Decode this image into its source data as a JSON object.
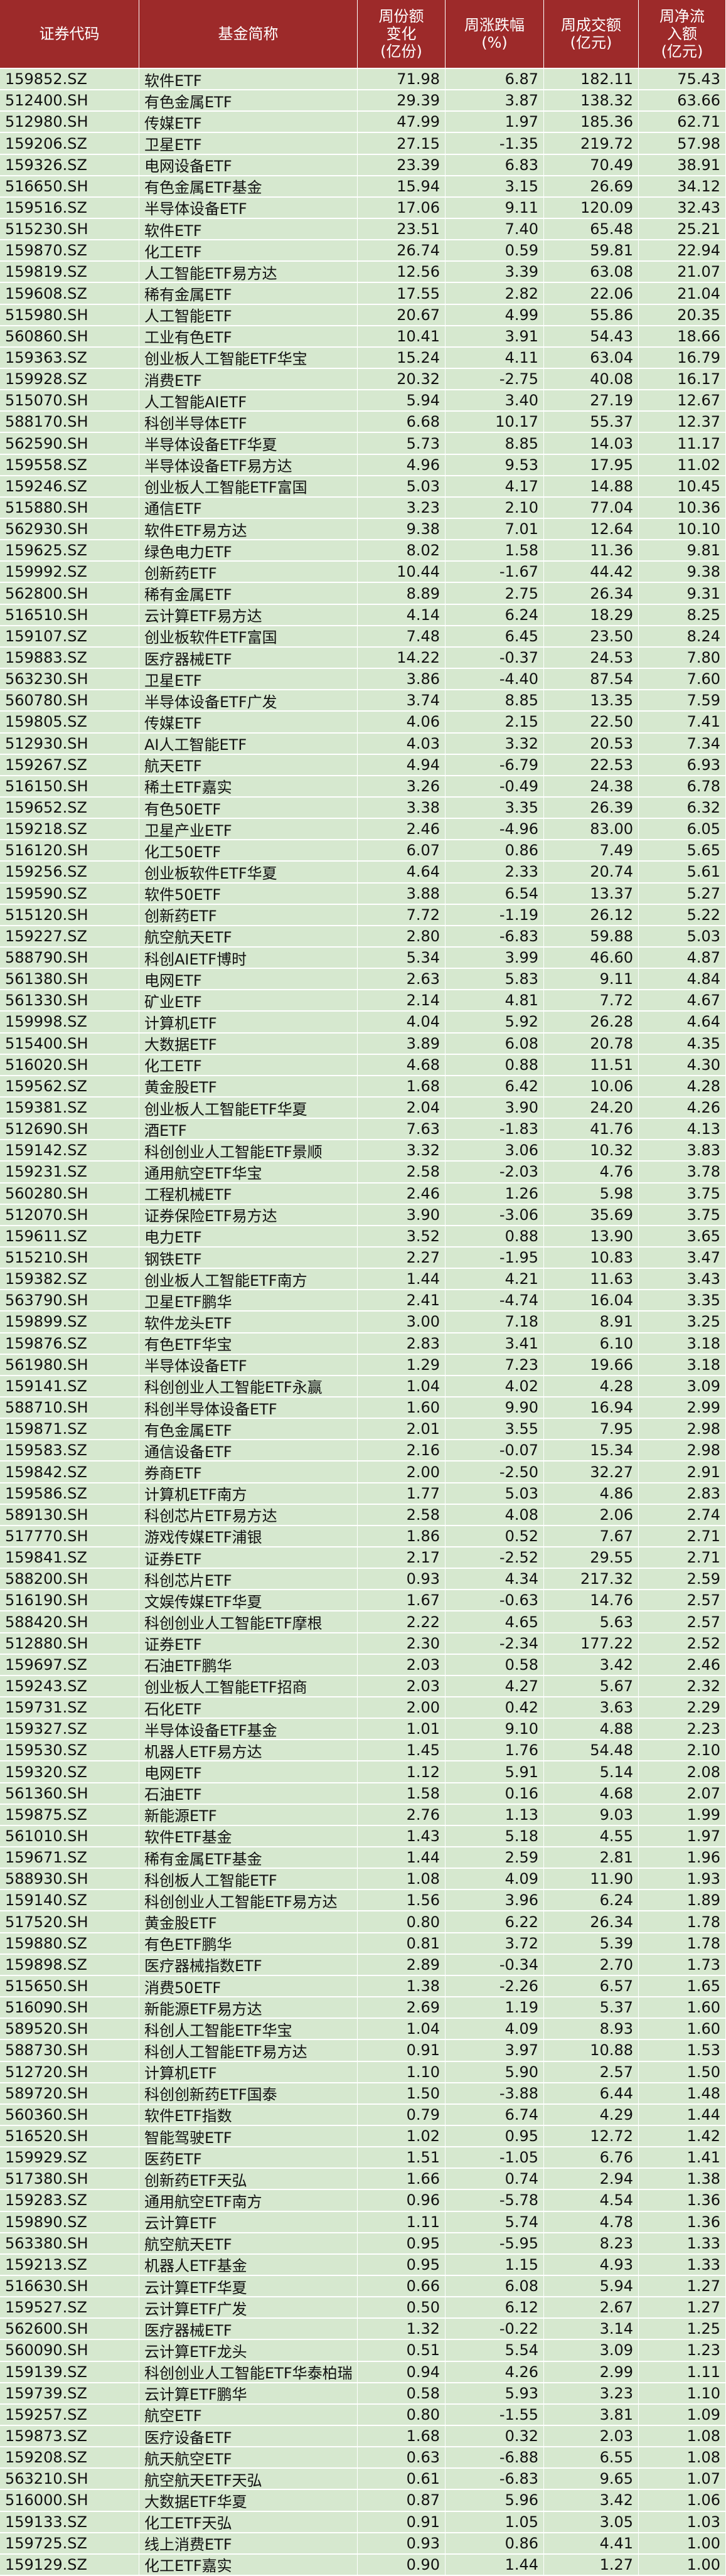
{
  "table": {
    "header": [
      "证券代码",
      "基金简称",
      "周份额\n变化\n(亿份)",
      "周涨跌幅\n(%)",
      "周成交额\n(亿元)",
      "周净流\n入额\n(亿元)"
    ],
    "rows": [
      [
        "159852.SZ",
        "软件ETF",
        "71.98",
        "6.87",
        "182.11",
        "75.43"
      ],
      [
        "512400.SH",
        "有色金属ETF",
        "29.39",
        "3.87",
        "138.32",
        "63.66"
      ],
      [
        "512980.SH",
        "传媒ETF",
        "47.99",
        "1.97",
        "185.36",
        "62.71"
      ],
      [
        "159206.SZ",
        "卫星ETF",
        "27.15",
        "-1.35",
        "219.72",
        "57.98"
      ],
      [
        "159326.SZ",
        "电网设备ETF",
        "23.39",
        "6.83",
        "70.49",
        "38.91"
      ],
      [
        "516650.SH",
        "有色金属ETF基金",
        "15.94",
        "3.15",
        "26.69",
        "34.12"
      ],
      [
        "159516.SZ",
        "半导体设备ETF",
        "17.06",
        "9.11",
        "120.09",
        "32.43"
      ],
      [
        "515230.SH",
        "软件ETF",
        "23.51",
        "7.40",
        "65.48",
        "25.21"
      ],
      [
        "159870.SZ",
        "化工ETF",
        "26.74",
        "0.59",
        "59.81",
        "22.94"
      ],
      [
        "159819.SZ",
        "人工智能ETF易方达",
        "12.56",
        "3.39",
        "63.08",
        "21.07"
      ],
      [
        "159608.SZ",
        "稀有金属ETF",
        "17.55",
        "2.82",
        "22.06",
        "21.04"
      ],
      [
        "515980.SH",
        "人工智能ETF",
        "20.67",
        "4.99",
        "55.86",
        "20.35"
      ],
      [
        "560860.SH",
        "工业有色ETF",
        "10.41",
        "3.91",
        "54.43",
        "18.66"
      ],
      [
        "159363.SZ",
        "创业板人工智能ETF华宝",
        "15.24",
        "4.11",
        "63.04",
        "16.79"
      ],
      [
        "159928.SZ",
        "消费ETF",
        "20.32",
        "-2.75",
        "40.08",
        "16.17"
      ],
      [
        "515070.SH",
        "人工智能AIETF",
        "5.94",
        "3.40",
        "27.19",
        "12.67"
      ],
      [
        "588170.SH",
        "科创半导体ETF",
        "6.68",
        "10.17",
        "55.37",
        "12.37"
      ],
      [
        "562590.SH",
        "半导体设备ETF华夏",
        "5.73",
        "8.85",
        "14.03",
        "11.17"
      ],
      [
        "159558.SZ",
        "半导体设备ETF易方达",
        "4.96",
        "9.53",
        "17.95",
        "11.02"
      ],
      [
        "159246.SZ",
        "创业板人工智能ETF富国",
        "5.03",
        "4.17",
        "14.88",
        "10.45"
      ],
      [
        "515880.SH",
        "通信ETF",
        "3.23",
        "2.10",
        "77.04",
        "10.36"
      ],
      [
        "562930.SH",
        "软件ETF易方达",
        "9.38",
        "7.01",
        "12.64",
        "10.10"
      ],
      [
        "159625.SZ",
        "绿色电力ETF",
        "8.02",
        "1.58",
        "11.36",
        "9.81"
      ],
      [
        "159992.SZ",
        "创新药ETF",
        "10.44",
        "-1.67",
        "44.42",
        "9.38"
      ],
      [
        "562800.SH",
        "稀有金属ETF",
        "8.89",
        "2.75",
        "26.34",
        "9.31"
      ],
      [
        "516510.SH",
        "云计算ETF易方达",
        "4.14",
        "6.24",
        "18.29",
        "8.25"
      ],
      [
        "159107.SZ",
        "创业板软件ETF富国",
        "7.48",
        "6.45",
        "23.50",
        "8.24"
      ],
      [
        "159883.SZ",
        "医疗器械ETF",
        "14.22",
        "-0.37",
        "24.53",
        "7.80"
      ],
      [
        "563230.SH",
        "卫星ETF",
        "3.86",
        "-4.40",
        "87.54",
        "7.60"
      ],
      [
        "560780.SH",
        "半导体设备ETF广发",
        "3.74",
        "8.85",
        "13.35",
        "7.59"
      ],
      [
        "159805.SZ",
        "传媒ETF",
        "4.06",
        "2.15",
        "22.50",
        "7.41"
      ],
      [
        "512930.SH",
        "AI人工智能ETF",
        "4.03",
        "3.32",
        "20.53",
        "7.34"
      ],
      [
        "159267.SZ",
        "航天ETF",
        "4.94",
        "-6.79",
        "22.53",
        "6.93"
      ],
      [
        "516150.SH",
        "稀土ETF嘉实",
        "3.26",
        "-0.49",
        "24.38",
        "6.78"
      ],
      [
        "159652.SZ",
        "有色50ETF",
        "3.38",
        "3.35",
        "26.39",
        "6.32"
      ],
      [
        "159218.SZ",
        "卫星产业ETF",
        "2.46",
        "-4.96",
        "83.00",
        "6.05"
      ],
      [
        "516120.SH",
        "化工50ETF",
        "6.07",
        "0.86",
        "7.49",
        "5.65"
      ],
      [
        "159256.SZ",
        "创业板软件ETF华夏",
        "4.64",
        "2.33",
        "20.74",
        "5.61"
      ],
      [
        "159590.SZ",
        "软件50ETF",
        "3.88",
        "6.54",
        "13.37",
        "5.27"
      ],
      [
        "515120.SH",
        "创新药ETF",
        "7.72",
        "-1.19",
        "26.12",
        "5.22"
      ],
      [
        "159227.SZ",
        "航空航天ETF",
        "2.80",
        "-6.83",
        "59.88",
        "5.03"
      ],
      [
        "588790.SH",
        "科创AIETF博时",
        "5.34",
        "3.99",
        "46.60",
        "4.87"
      ],
      [
        "561380.SH",
        "电网ETF",
        "2.63",
        "5.83",
        "9.11",
        "4.84"
      ],
      [
        "561330.SH",
        "矿业ETF",
        "2.14",
        "4.81",
        "7.72",
        "4.67"
      ],
      [
        "159998.SZ",
        "计算机ETF",
        "4.04",
        "5.92",
        "26.28",
        "4.64"
      ],
      [
        "515400.SH",
        "大数据ETF",
        "3.89",
        "6.08",
        "20.78",
        "4.35"
      ],
      [
        "516020.SH",
        "化工ETF",
        "4.68",
        "0.88",
        "11.51",
        "4.30"
      ],
      [
        "159562.SZ",
        "黄金股ETF",
        "1.68",
        "6.42",
        "10.06",
        "4.28"
      ],
      [
        "159381.SZ",
        "创业板人工智能ETF华夏",
        "2.04",
        "3.90",
        "24.20",
        "4.26"
      ],
      [
        "512690.SH",
        "酒ETF",
        "7.63",
        "-1.83",
        "41.76",
        "4.13"
      ],
      [
        "159142.SZ",
        "科创创业人工智能ETF景顺",
        "3.32",
        "3.06",
        "10.32",
        "3.83"
      ],
      [
        "159231.SZ",
        "通用航空ETF华宝",
        "2.58",
        "-2.03",
        "4.76",
        "3.78"
      ],
      [
        "560280.SH",
        "工程机械ETF",
        "2.46",
        "1.26",
        "5.98",
        "3.75"
      ],
      [
        "512070.SH",
        "证券保险ETF易方达",
        "3.90",
        "-3.06",
        "35.69",
        "3.75"
      ],
      [
        "159611.SZ",
        "电力ETF",
        "3.52",
        "0.88",
        "13.90",
        "3.65"
      ],
      [
        "515210.SH",
        "钢铁ETF",
        "2.27",
        "-1.95",
        "10.83",
        "3.47"
      ],
      [
        "159382.SZ",
        "创业板人工智能ETF南方",
        "1.44",
        "4.21",
        "11.63",
        "3.43"
      ],
      [
        "563790.SH",
        "卫星ETF鹏华",
        "2.41",
        "-4.74",
        "16.04",
        "3.35"
      ],
      [
        "159899.SZ",
        "软件龙头ETF",
        "3.00",
        "7.18",
        "8.91",
        "3.25"
      ],
      [
        "159876.SZ",
        "有色ETF华宝",
        "2.83",
        "3.41",
        "6.10",
        "3.18"
      ],
      [
        "561980.SH",
        "半导体设备ETF",
        "1.29",
        "7.23",
        "19.66",
        "3.18"
      ],
      [
        "159141.SZ",
        "科创创业人工智能ETF永赢",
        "1.04",
        "4.02",
        "4.28",
        "3.09"
      ],
      [
        "588710.SH",
        "科创半导体设备ETF",
        "1.60",
        "9.90",
        "16.94",
        "2.99"
      ],
      [
        "159871.SZ",
        "有色金属ETF",
        "2.01",
        "3.55",
        "7.95",
        "2.98"
      ],
      [
        "159583.SZ",
        "通信设备ETF",
        "2.16",
        "-0.07",
        "15.34",
        "2.98"
      ],
      [
        "159842.SZ",
        "券商ETF",
        "2.00",
        "-2.50",
        "32.27",
        "2.91"
      ],
      [
        "159586.SZ",
        "计算机ETF南方",
        "1.77",
        "5.03",
        "4.86",
        "2.83"
      ],
      [
        "589130.SH",
        "科创芯片ETF易方达",
        "2.58",
        "4.08",
        "2.06",
        "2.74"
      ],
      [
        "517770.SH",
        "游戏传媒ETF浦银",
        "1.86",
        "0.52",
        "7.67",
        "2.71"
      ],
      [
        "159841.SZ",
        "证券ETF",
        "2.17",
        "-2.52",
        "29.55",
        "2.71"
      ],
      [
        "588200.SH",
        "科创芯片ETF",
        "0.93",
        "4.34",
        "217.32",
        "2.59"
      ],
      [
        "516190.SH",
        "文娱传媒ETF华夏",
        "1.67",
        "-0.63",
        "14.76",
        "2.57"
      ],
      [
        "588420.SH",
        "科创创业人工智能ETF摩根",
        "2.22",
        "4.65",
        "5.63",
        "2.57"
      ],
      [
        "512880.SH",
        "证券ETF",
        "2.30",
        "-2.34",
        "177.22",
        "2.52"
      ],
      [
        "159697.SZ",
        "石油ETF鹏华",
        "2.03",
        "0.58",
        "3.42",
        "2.46"
      ],
      [
        "159243.SZ",
        "创业板人工智能ETF招商",
        "2.03",
        "4.27",
        "5.67",
        "2.32"
      ],
      [
        "159731.SZ",
        "石化ETF",
        "2.00",
        "0.42",
        "3.63",
        "2.29"
      ],
      [
        "159327.SZ",
        "半导体设备ETF基金",
        "1.01",
        "9.10",
        "4.88",
        "2.23"
      ],
      [
        "159530.SZ",
        "机器人ETF易方达",
        "1.45",
        "1.76",
        "54.48",
        "2.10"
      ],
      [
        "159320.SZ",
        "电网ETF",
        "1.12",
        "5.91",
        "5.14",
        "2.08"
      ],
      [
        "561360.SH",
        "石油ETF",
        "1.58",
        "0.16",
        "4.68",
        "2.07"
      ],
      [
        "159875.SZ",
        "新能源ETF",
        "2.76",
        "1.13",
        "9.03",
        "1.99"
      ],
      [
        "561010.SH",
        "软件ETF基金",
        "1.43",
        "5.18",
        "4.55",
        "1.97"
      ],
      [
        "159671.SZ",
        "稀有金属ETF基金",
        "1.44",
        "2.59",
        "2.81",
        "1.96"
      ],
      [
        "588930.SH",
        "科创板人工智能ETF",
        "1.08",
        "4.09",
        "11.90",
        "1.93"
      ],
      [
        "159140.SZ",
        "科创创业人工智能ETF易方达",
        "1.56",
        "3.96",
        "6.24",
        "1.89"
      ],
      [
        "517520.SH",
        "黄金股ETF",
        "0.80",
        "6.22",
        "26.34",
        "1.78"
      ],
      [
        "159880.SZ",
        "有色ETF鹏华",
        "0.81",
        "3.72",
        "5.39",
        "1.78"
      ],
      [
        "159898.SZ",
        "医疗器械指数ETF",
        "2.89",
        "-0.34",
        "2.70",
        "1.73"
      ],
      [
        "515650.SH",
        "消费50ETF",
        "1.38",
        "-2.26",
        "6.57",
        "1.65"
      ],
      [
        "516090.SH",
        "新能源ETF易方达",
        "2.69",
        "1.19",
        "5.37",
        "1.60"
      ],
      [
        "589520.SH",
        "科创人工智能ETF华宝",
        "1.04",
        "4.09",
        "8.93",
        "1.60"
      ],
      [
        "588730.SH",
        "科创人工智能ETF易方达",
        "0.91",
        "3.97",
        "10.88",
        "1.53"
      ],
      [
        "512720.SH",
        "计算机ETF",
        "1.10",
        "5.90",
        "2.57",
        "1.50"
      ],
      [
        "589720.SH",
        "科创创新药ETF国泰",
        "1.50",
        "-3.88",
        "6.44",
        "1.48"
      ],
      [
        "560360.SH",
        "软件ETF指数",
        "0.79",
        "6.74",
        "4.29",
        "1.44"
      ],
      [
        "516520.SH",
        "智能驾驶ETF",
        "1.02",
        "0.95",
        "12.72",
        "1.42"
      ],
      [
        "159929.SZ",
        "医药ETF",
        "1.51",
        "-1.05",
        "6.76",
        "1.41"
      ],
      [
        "517380.SH",
        "创新药ETF天弘",
        "1.66",
        "0.74",
        "2.94",
        "1.38"
      ],
      [
        "159283.SZ",
        "通用航空ETF南方",
        "0.96",
        "-5.78",
        "4.54",
        "1.36"
      ],
      [
        "159890.SZ",
        "云计算ETF",
        "1.11",
        "5.74",
        "4.78",
        "1.36"
      ],
      [
        "563380.SH",
        "航空航天ETF",
        "0.95",
        "-5.95",
        "8.23",
        "1.33"
      ],
      [
        "159213.SZ",
        "机器人ETF基金",
        "0.95",
        "1.15",
        "4.93",
        "1.33"
      ],
      [
        "516630.SH",
        "云计算ETF华夏",
        "0.66",
        "6.08",
        "5.94",
        "1.27"
      ],
      [
        "159527.SZ",
        "云计算ETF广发",
        "0.50",
        "6.12",
        "2.67",
        "1.27"
      ],
      [
        "562600.SH",
        "医疗器械ETF",
        "1.32",
        "-0.22",
        "3.14",
        "1.25"
      ],
      [
        "560090.SH",
        "云计算ETF龙头",
        "0.51",
        "5.54",
        "3.09",
        "1.23"
      ],
      [
        "159139.SZ",
        "科创创业人工智能ETF华泰柏瑞",
        "0.94",
        "4.26",
        "2.99",
        "1.11"
      ],
      [
        "159739.SZ",
        "云计算ETF鹏华",
        "0.58",
        "5.93",
        "3.23",
        "1.10"
      ],
      [
        "159257.SZ",
        "航空ETF",
        "0.80",
        "-1.55",
        "3.81",
        "1.09"
      ],
      [
        "159873.SZ",
        "医疗设备ETF",
        "1.68",
        "0.32",
        "2.03",
        "1.08"
      ],
      [
        "159208.SZ",
        "航天航空ETF",
        "0.63",
        "-6.88",
        "6.55",
        "1.08"
      ],
      [
        "563210.SH",
        "航空航天ETF天弘",
        "0.61",
        "-6.83",
        "9.65",
        "1.07"
      ],
      [
        "516000.SH",
        "大数据ETF华夏",
        "0.87",
        "5.96",
        "3.42",
        "1.06"
      ],
      [
        "159133.SZ",
        "化工ETF天弘",
        "0.91",
        "1.05",
        "3.05",
        "1.03"
      ],
      [
        "159725.SZ",
        "线上消费ETF",
        "0.93",
        "0.86",
        "4.41",
        "1.00"
      ],
      [
        "159129.SZ",
        "化工ETF嘉实",
        "0.90",
        "1.44",
        "1.27",
        "1.00"
      ]
    ]
  }
}
